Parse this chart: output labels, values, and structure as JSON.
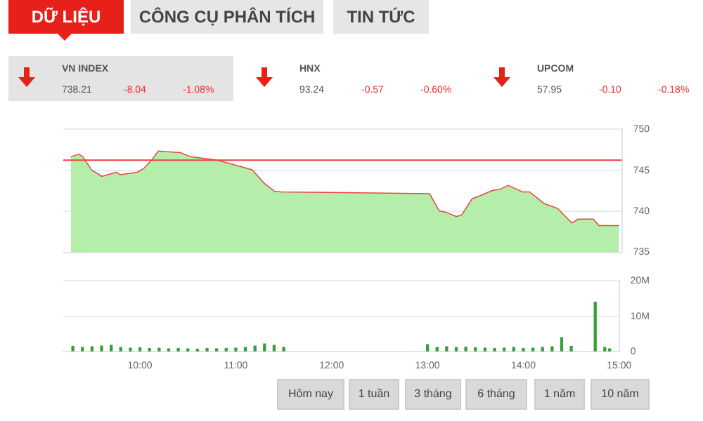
{
  "chart_data": [
    {
      "type": "other",
      "annotations": [
        "DỮ LIỆU",
        "CÔNG CỤ PHÂN TÍCH",
        "TIN TỨC",
        "VN INDEX",
        "738.21",
        "-8.04",
        "-1.08%",
        "HNX",
        "93.24",
        "-0.57",
        "-0.60%",
        "UPCOM",
        "57.95",
        "-0.10",
        "-0.18%"
      ]
    },
    {
      "type": "area",
      "xlim": [
        9.2,
        15
      ],
      "ylim": [
        735,
        750
      ],
      "yticks": [
        735,
        740,
        745,
        750
      ],
      "tick_labels": "y",
      "grid": "y",
      "ref_lines": [
        {
          "axis": "y",
          "value": 746.25,
          "color": "#f04040"
        }
      ],
      "series": [
        {
          "color": "#b5eeaa",
          "x": [
            9.28,
            9.36,
            9.4,
            9.49,
            9.6,
            9.75,
            9.79,
            9.97,
            10.04,
            10.12,
            10.19,
            10.42,
            10.52,
            10.79,
            11.01,
            11.16,
            11.28,
            11.39,
            11.46,
            13.0,
            13.1,
            13.18,
            13.28,
            13.34,
            13.45,
            13.52,
            13.66,
            13.73,
            13.82,
            13.97,
            14.04,
            14.19,
            14.33,
            14.48,
            14.55,
            14.7,
            14.76,
            14.97
          ],
          "values": [
            746.6,
            746.9,
            746.6,
            745.0,
            744.2,
            744.7,
            744.4,
            744.7,
            745.2,
            746.2,
            747.3,
            747.1,
            746.6,
            746.2,
            745.5,
            745.0,
            743.4,
            742.4,
            742.3,
            742.1,
            740.0,
            739.8,
            739.3,
            739.5,
            741.5,
            741.8,
            742.5,
            742.6,
            743.1,
            742.3,
            742.3,
            740.9,
            740.3,
            738.5,
            739.0,
            739.0,
            738.2,
            738.2
          ]
        },
        {
          "type": "line",
          "color": "#e8463c",
          "x": [
            9.28,
            9.36,
            9.4,
            9.49,
            9.6,
            9.75,
            9.79,
            9.97,
            10.04,
            10.12,
            10.19,
            10.42,
            10.52,
            10.79,
            11.01,
            11.16,
            11.28,
            11.39,
            11.46,
            13.0,
            13.1,
            13.18,
            13.28,
            13.34,
            13.45,
            13.52,
            13.66,
            13.73,
            13.82,
            13.97,
            14.04,
            14.19,
            14.33,
            14.48,
            14.55,
            14.7,
            14.76,
            14.97
          ],
          "values": [
            746.6,
            746.9,
            746.6,
            745.0,
            744.2,
            744.7,
            744.4,
            744.7,
            745.2,
            746.2,
            747.3,
            747.1,
            746.6,
            746.2,
            745.5,
            745.0,
            743.4,
            742.4,
            742.3,
            742.1,
            740.0,
            739.8,
            739.3,
            739.5,
            741.5,
            741.8,
            742.5,
            742.6,
            743.1,
            742.3,
            742.3,
            740.9,
            740.3,
            738.5,
            739.0,
            739.0,
            738.2,
            738.2
          ]
        }
      ]
    },
    {
      "type": "bar",
      "xlim": [
        9.2,
        15
      ],
      "xticks": [
        {
          "value": 10,
          "label": "10:00"
        },
        {
          "value": 11,
          "label": "11:00"
        },
        {
          "value": 12,
          "label": "12:00"
        },
        {
          "value": 13,
          "label": "13:00"
        },
        {
          "value": 14,
          "label": "14:00"
        },
        {
          "value": 15,
          "label": "15:00"
        }
      ],
      "ylim": [
        0,
        20
      ],
      "yticks": [
        0,
        {
          "value": 10,
          "label": "10M"
        },
        {
          "value": 20,
          "label": "20M"
        }
      ],
      "grid": "y",
      "series": [
        {
          "color": "#3a9e3a",
          "x": [
            9.3,
            9.4,
            9.5,
            9.6,
            9.7,
            9.8,
            9.9,
            10.0,
            10.1,
            10.2,
            10.3,
            10.4,
            10.5,
            10.6,
            10.7,
            10.8,
            10.9,
            11.0,
            11.1,
            11.2,
            11.3,
            11.4,
            11.5,
            13.0,
            13.1,
            13.2,
            13.3,
            13.4,
            13.5,
            13.6,
            13.7,
            13.8,
            13.9,
            14.0,
            14.1,
            14.2,
            14.3,
            14.4,
            14.5,
            14.75,
            14.85,
            14.9
          ],
          "values": [
            1.5,
            1.2,
            1.4,
            1.6,
            1.8,
            1.2,
            1.0,
            1.1,
            0.9,
            1.0,
            0.8,
            0.9,
            0.8,
            0.7,
            0.9,
            0.8,
            0.9,
            1.0,
            1.2,
            1.6,
            2.2,
            1.8,
            1.2,
            2.0,
            1.2,
            1.4,
            1.2,
            1.3,
            1.1,
            1.0,
            0.9,
            1.0,
            1.2,
            0.9,
            1.0,
            1.2,
            1.4,
            4.0,
            1.5,
            14,
            1.2,
            0.8
          ]
        }
      ]
    },
    {
      "type": "other",
      "annotations": [
        "Hôm nay",
        "1 tuần",
        "3 tháng",
        "6 tháng",
        "1 năm",
        "10 năm"
      ]
    }
  ]
}
